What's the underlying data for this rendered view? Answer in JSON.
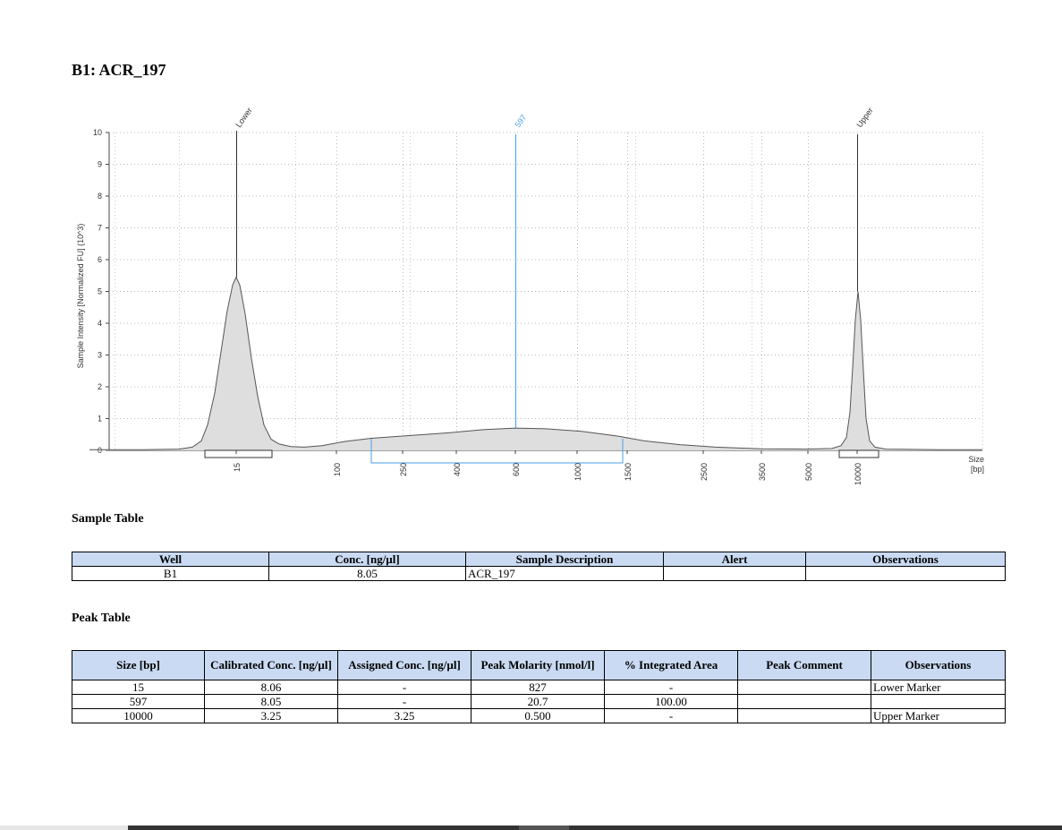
{
  "header": {
    "sample_title": "B1: ACR_197"
  },
  "chart_data": {
    "type": "area",
    "ylabel": "Sample Intensity [Normalized FU] (10^3)",
    "xlabel": "Size\n[bp]",
    "xlabel_lines": [
      "Size",
      "[bp]"
    ],
    "ylim": [
      0,
      10
    ],
    "y_ticks": [
      0,
      1,
      2,
      3,
      4,
      5,
      6,
      7,
      8,
      9,
      10
    ],
    "x_scale": "log (sizing ladder)",
    "x_ticks": [
      "15",
      "100",
      "250",
      "400",
      "600",
      "1000",
      "1500",
      "2500",
      "3500",
      "5000",
      "10000"
    ],
    "grid": true,
    "peaks": [
      {
        "label": "Lower",
        "size_bp": 15,
        "height": 5.45,
        "color": "#333333"
      },
      {
        "label": "597",
        "size_bp": 597,
        "height": 0.7,
        "color": "#4a9fe8"
      },
      {
        "label": "Upper",
        "size_bp": 10000,
        "height": 5.0,
        "color": "#333333"
      }
    ],
    "profile": [
      [
        100,
        0.02
      ],
      [
        160,
        0.02
      ],
      [
        200,
        0.04
      ],
      [
        215,
        0.1
      ],
      [
        225,
        0.3
      ],
      [
        232,
        0.8
      ],
      [
        240,
        1.8
      ],
      [
        247,
        3.1
      ],
      [
        254,
        4.4
      ],
      [
        260,
        5.2
      ],
      [
        264,
        5.45
      ],
      [
        268,
        5.2
      ],
      [
        274,
        4.3
      ],
      [
        281,
        2.9
      ],
      [
        288,
        1.7
      ],
      [
        295,
        0.8
      ],
      [
        303,
        0.35
      ],
      [
        312,
        0.2
      ],
      [
        325,
        0.12
      ],
      [
        340,
        0.1
      ],
      [
        360,
        0.15
      ],
      [
        385,
        0.28
      ],
      [
        415,
        0.38
      ],
      [
        450,
        0.45
      ],
      [
        500,
        0.55
      ],
      [
        540,
        0.65
      ],
      [
        576,
        0.7
      ],
      [
        610,
        0.68
      ],
      [
        650,
        0.6
      ],
      [
        690,
        0.45
      ],
      [
        720,
        0.3
      ],
      [
        760,
        0.18
      ],
      [
        800,
        0.1
      ],
      [
        850,
        0.05
      ],
      [
        900,
        0.04
      ],
      [
        930,
        0.06
      ],
      [
        940,
        0.15
      ],
      [
        946,
        0.4
      ],
      [
        950,
        1.2
      ],
      [
        953,
        2.6
      ],
      [
        956,
        4.1
      ],
      [
        959,
        5.0
      ],
      [
        962,
        4.1
      ],
      [
        965,
        2.5
      ],
      [
        968,
        1.0
      ],
      [
        972,
        0.3
      ],
      [
        978,
        0.1
      ],
      [
        990,
        0.04
      ],
      [
        1050,
        0.02
      ],
      [
        1098,
        0.02
      ]
    ]
  },
  "sample_table": {
    "title": "Sample Table",
    "headers": [
      "Well",
      "Conc. [ng/µl]",
      "Sample Description",
      "Alert",
      "Observations"
    ],
    "row": [
      "B1",
      "8.05",
      "ACR_197",
      "",
      ""
    ]
  },
  "peak_table": {
    "title": "Peak Table",
    "headers": [
      "Size [bp]",
      "Calibrated Conc. [ng/µl]",
      "Assigned Conc. [ng/µl]",
      "Peak Molarity [nmol/l]",
      "% Integrated Area",
      "Peak Comment",
      "Observations"
    ],
    "rows": [
      [
        "15",
        "8.06",
        "-",
        "827",
        "-",
        "",
        "Lower Marker"
      ],
      [
        "597",
        "8.05",
        "-",
        "20.7",
        "100.00",
        "",
        ""
      ],
      [
        "10000",
        "3.25",
        "3.25",
        "0.500",
        "-",
        "",
        "Upper Marker"
      ]
    ]
  }
}
